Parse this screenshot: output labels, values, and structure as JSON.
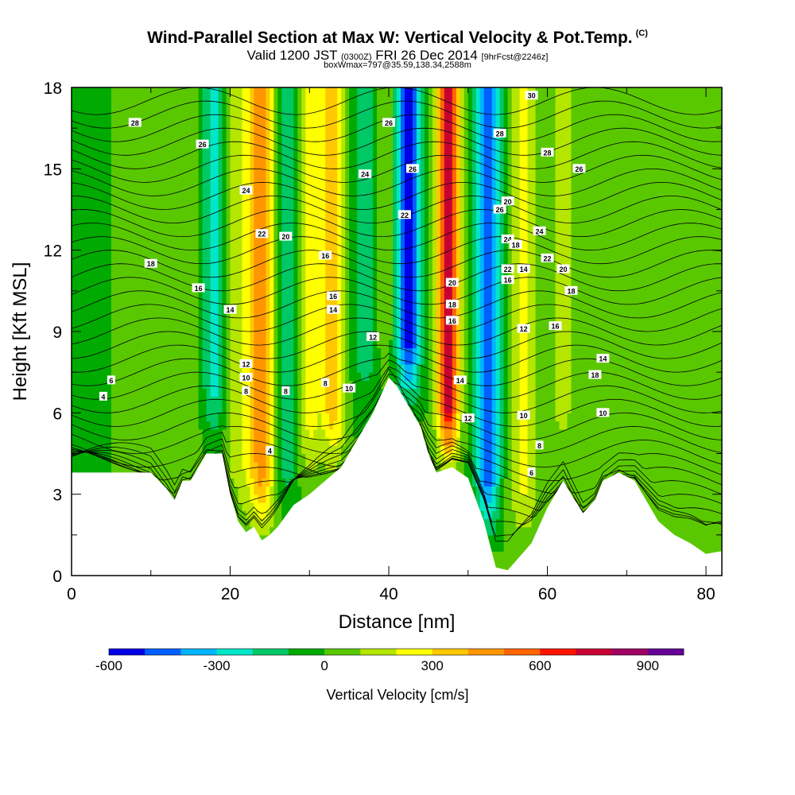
{
  "header": {
    "title": "Wind-Parallel Section at Max W: Vertical Velocity & Pot.Temp.",
    "copyright": "(C)",
    "valid_prefix": "Valid 1200 JST",
    "valid_utc": "(0300Z)",
    "valid_date": "FRI 26 Dec 2014",
    "forecast": "[9hrFcst@2246z]",
    "boxwmax": "boxWmax=797@35.59,138.34,2588m"
  },
  "chart_data": {
    "type": "heatmap",
    "xlabel": "Distance [nm]",
    "ylabel": "Height [Kft MSL]",
    "xlim": [
      0,
      82
    ],
    "ylim": [
      0,
      18
    ],
    "x_ticks": [
      "0",
      "20",
      "40",
      "60",
      "80"
    ],
    "y_ticks": [
      "0",
      "3",
      "6",
      "9",
      "12",
      "15",
      "18"
    ],
    "colorbar": {
      "label": "Vertical Velocity [cm/s]",
      "tick_labels": [
        "-600",
        "-300",
        "0",
        "300",
        "600",
        "900"
      ],
      "range": [
        -600,
        1000
      ],
      "colors": [
        "#0000e6",
        "#0060ff",
        "#00b4ff",
        "#00e6c8",
        "#00c864",
        "#00aa00",
        "#5ac800",
        "#b4e600",
        "#ffff00",
        "#ffc800",
        "#ff9600",
        "#ff6400",
        "#ff1400",
        "#c80032",
        "#a00064",
        "#640096"
      ]
    },
    "background_color": "#00aa00",
    "w_features": [
      {
        "x_center": 3,
        "x_width": 4,
        "w": -80
      },
      {
        "x_center": 6,
        "x_width": 5,
        "w": 40
      },
      {
        "x_center": 13,
        "x_width": 6,
        "w": 80
      },
      {
        "x_center": 18,
        "x_width": 2.5,
        "w": -260
      },
      {
        "x_center": 21,
        "x_width": 3,
        "w": 150
      },
      {
        "x_center": 24,
        "x_width": 3,
        "w": 440
      },
      {
        "x_center": 27,
        "x_width": 2.5,
        "w": -220
      },
      {
        "x_center": 30,
        "x_width": 2.5,
        "w": 220
      },
      {
        "x_center": 33,
        "x_width": 2.5,
        "w": 380
      },
      {
        "x_center": 37,
        "x_width": 3,
        "w": -140
      },
      {
        "x_center": 39.5,
        "x_width": 2,
        "w": 120
      },
      {
        "x_center": 42.5,
        "x_width": 2.5,
        "w": -560
      },
      {
        "x_center": 47.5,
        "x_width": 2.2,
        "w": 797
      },
      {
        "x_center": 52.5,
        "x_width": 2.5,
        "w": -500
      },
      {
        "x_center": 57,
        "x_width": 3,
        "w": 220
      },
      {
        "x_center": 62,
        "x_width": 3,
        "w": 120
      },
      {
        "x_center": 66,
        "x_width": 2,
        "w": 40
      },
      {
        "x_center": 72,
        "x_width": 3,
        "w": 60
      },
      {
        "x_center": 79,
        "x_width": 3,
        "w": 40
      }
    ],
    "terrain_kft": [
      [
        0,
        3.8
      ],
      [
        10,
        3.8
      ],
      [
        12,
        3.2
      ],
      [
        13,
        2.8
      ],
      [
        14,
        3.5
      ],
      [
        15,
        3.5
      ],
      [
        16,
        4.0
      ],
      [
        17,
        4.5
      ],
      [
        19,
        4.5
      ],
      [
        20,
        3.0
      ],
      [
        21,
        2.0
      ],
      [
        22,
        1.6
      ],
      [
        23,
        1.8
      ],
      [
        24,
        1.3
      ],
      [
        25,
        1.5
      ],
      [
        26,
        1.8
      ],
      [
        27,
        2.2
      ],
      [
        28,
        2.6
      ],
      [
        30,
        3.0
      ],
      [
        32,
        3.5
      ],
      [
        34,
        4.0
      ],
      [
        36,
        5.0
      ],
      [
        38,
        6.0
      ],
      [
        40,
        7.3
      ],
      [
        41,
        7.0
      ],
      [
        42,
        6.5
      ],
      [
        43,
        6.0
      ],
      [
        44,
        5.5
      ],
      [
        45,
        4.5
      ],
      [
        46,
        3.8
      ],
      [
        48,
        4.0
      ],
      [
        50,
        3.6
      ],
      [
        52,
        2.0
      ],
      [
        53.5,
        0.3
      ],
      [
        55,
        0.2
      ],
      [
        58,
        1.2
      ],
      [
        60,
        2.5
      ],
      [
        62,
        3.5
      ],
      [
        63,
        3.0
      ],
      [
        64.5,
        2.3
      ],
      [
        66,
        2.8
      ],
      [
        67,
        3.5
      ],
      [
        69,
        3.8
      ],
      [
        71,
        3.5
      ],
      [
        73,
        2.5
      ],
      [
        74,
        2.0
      ],
      [
        76,
        1.5
      ],
      [
        78,
        1.2
      ],
      [
        80,
        0.8
      ],
      [
        82,
        0.9
      ]
    ],
    "theta_contours": {
      "base_value": 4,
      "interval": 2,
      "count": 35,
      "labels": [
        {
          "text": "28",
          "x": 8,
          "y": 16.7
        },
        {
          "text": "26",
          "x": 16.5,
          "y": 15.9
        },
        {
          "text": "24",
          "x": 22,
          "y": 14.2
        },
        {
          "text": "22",
          "x": 24,
          "y": 12.6
        },
        {
          "text": "20",
          "x": 27,
          "y": 12.5
        },
        {
          "text": "18",
          "x": 10,
          "y": 11.5
        },
        {
          "text": "16",
          "x": 16,
          "y": 10.6
        },
        {
          "text": "16",
          "x": 32,
          "y": 11.8
        },
        {
          "text": "14",
          "x": 20,
          "y": 9.8
        },
        {
          "text": "16",
          "x": 33,
          "y": 10.3
        },
        {
          "text": "14",
          "x": 33,
          "y": 9.8
        },
        {
          "text": "12",
          "x": 38,
          "y": 8.8
        },
        {
          "text": "12",
          "x": 22,
          "y": 7.8
        },
        {
          "text": "10",
          "x": 22,
          "y": 7.3
        },
        {
          "text": "8",
          "x": 22,
          "y": 6.8
        },
        {
          "text": "8",
          "x": 27,
          "y": 6.8
        },
        {
          "text": "8",
          "x": 32,
          "y": 7.1
        },
        {
          "text": "10",
          "x": 35,
          "y": 6.9
        },
        {
          "text": "4",
          "x": 25,
          "y": 4.6
        },
        {
          "text": "6",
          "x": 5,
          "y": 7.2
        },
        {
          "text": "4",
          "x": 4,
          "y": 6.6
        },
        {
          "text": "26",
          "x": 40,
          "y": 16.7
        },
        {
          "text": "26",
          "x": 43,
          "y": 15.0
        },
        {
          "text": "24",
          "x": 37,
          "y": 14.8
        },
        {
          "text": "22",
          "x": 42,
          "y": 13.3
        },
        {
          "text": "20",
          "x": 48,
          "y": 10.8
        },
        {
          "text": "18",
          "x": 48,
          "y": 10.0
        },
        {
          "text": "16",
          "x": 48,
          "y": 9.4
        },
        {
          "text": "14",
          "x": 49,
          "y": 7.2
        },
        {
          "text": "12",
          "x": 50,
          "y": 5.8
        },
        {
          "text": "28",
          "x": 54,
          "y": 16.3
        },
        {
          "text": "26",
          "x": 54,
          "y": 13.5
        },
        {
          "text": "24",
          "x": 55,
          "y": 12.4
        },
        {
          "text": "22",
          "x": 55,
          "y": 11.3
        },
        {
          "text": "20",
          "x": 55,
          "y": 13.8
        },
        {
          "text": "18",
          "x": 56,
          "y": 12.2
        },
        {
          "text": "16",
          "x": 55,
          "y": 10.9
        },
        {
          "text": "14",
          "x": 57,
          "y": 11.3
        },
        {
          "text": "12",
          "x": 57,
          "y": 9.1
        },
        {
          "text": "10",
          "x": 57,
          "y": 5.9
        },
        {
          "text": "8",
          "x": 59,
          "y": 4.8
        },
        {
          "text": "6",
          "x": 58,
          "y": 3.8
        },
        {
          "text": "30",
          "x": 58,
          "y": 17.7
        },
        {
          "text": "28",
          "x": 60,
          "y": 15.6
        },
        {
          "text": "26",
          "x": 64,
          "y": 15.0
        },
        {
          "text": "24",
          "x": 59,
          "y": 12.7
        },
        {
          "text": "22",
          "x": 60,
          "y": 11.7
        },
        {
          "text": "20",
          "x": 62,
          "y": 11.3
        },
        {
          "text": "18",
          "x": 63,
          "y": 10.5
        },
        {
          "text": "16",
          "x": 61,
          "y": 9.2
        },
        {
          "text": "14",
          "x": 67,
          "y": 8.0
        },
        {
          "text": "18",
          "x": 66,
          "y": 7.4
        },
        {
          "text": "10",
          "x": 67,
          "y": 6.0
        }
      ]
    }
  }
}
